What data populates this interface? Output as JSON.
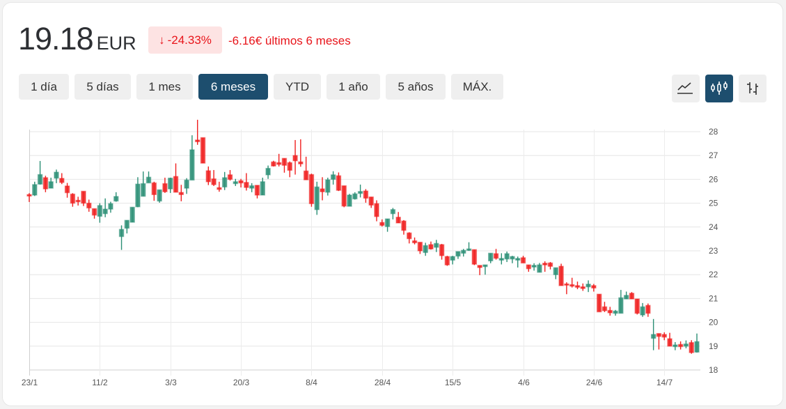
{
  "header": {
    "price": "19.18",
    "currency": "EUR",
    "change_arrow": "↓",
    "change_percent": "-24.33%",
    "change_text": "-6.16€ últimos 6 meses"
  },
  "ranges": [
    {
      "label": "1 día",
      "active": false
    },
    {
      "label": "5 días",
      "active": false
    },
    {
      "label": "1 mes",
      "active": false
    },
    {
      "label": "6 meses",
      "active": true
    },
    {
      "label": "YTD",
      "active": false
    },
    {
      "label": "1 año",
      "active": false
    },
    {
      "label": "5 años",
      "active": false
    },
    {
      "label": "MÁX.",
      "active": false
    }
  ],
  "chart_types": [
    {
      "icon": "line-chart-icon",
      "active": false
    },
    {
      "icon": "candlestick-icon",
      "active": true
    },
    {
      "icon": "ohlc-bars-icon",
      "active": false
    }
  ],
  "colors": {
    "up": "#2b8f75",
    "down": "#f01f1f",
    "accent": "#1d4e6e",
    "negative_text": "#e8141a",
    "negative_bg": "#fde3e3"
  },
  "chart_data": {
    "type": "candlestick",
    "ylim": [
      18,
      28
    ],
    "y_ticks": [
      18,
      19,
      20,
      21,
      22,
      23,
      24,
      25,
      26,
      27,
      28
    ],
    "y_axis_position": "right",
    "grid": true,
    "x_ticks": [
      {
        "label": "23/1",
        "index": 0
      },
      {
        "label": "11/2",
        "index": 13
      },
      {
        "label": "3/3",
        "index": 26
      },
      {
        "label": "20/3",
        "index": 39
      },
      {
        "label": "8/4",
        "index": 52
      },
      {
        "label": "28/4",
        "index": 65
      },
      {
        "label": "15/5",
        "index": 78
      },
      {
        "label": "4/6",
        "index": 91
      },
      {
        "label": "24/6",
        "index": 104
      },
      {
        "label": "14/7",
        "index": 117
      }
    ],
    "ohlc": [
      [
        25.36,
        25.42,
        25.05,
        25.3
      ],
      [
        25.34,
        25.9,
        25.3,
        25.78
      ],
      [
        25.8,
        26.77,
        25.78,
        26.2
      ],
      [
        26.07,
        26.15,
        25.46,
        25.6
      ],
      [
        25.63,
        26.07,
        25.63,
        25.9
      ],
      [
        26.05,
        26.41,
        25.84,
        26.3
      ],
      [
        26.04,
        26.26,
        25.8,
        25.87
      ],
      [
        25.72,
        25.85,
        25.23,
        25.44
      ],
      [
        25.38,
        25.42,
        24.85,
        25.0
      ],
      [
        25.12,
        25.27,
        24.9,
        25.06
      ],
      [
        25.5,
        25.5,
        24.88,
        25.0
      ],
      [
        25.0,
        25.15,
        24.64,
        24.8
      ],
      [
        24.77,
        24.77,
        24.35,
        24.5
      ],
      [
        24.45,
        25.0,
        24.18,
        24.9
      ],
      [
        24.56,
        25.2,
        24.41,
        24.75
      ],
      [
        24.75,
        25.06,
        24.6,
        24.98
      ],
      [
        25.09,
        25.46,
        25.06,
        25.28
      ],
      [
        23.6,
        24.07,
        23.04,
        23.9
      ],
      [
        23.95,
        24.28,
        23.73,
        24.28
      ],
      [
        24.2,
        24.83,
        24.2,
        24.83
      ],
      [
        24.85,
        26.09,
        24.83,
        25.8
      ],
      [
        25.29,
        26.33,
        25.29,
        25.82
      ],
      [
        25.85,
        26.33,
        25.85,
        26.09
      ],
      [
        25.85,
        25.9,
        25.1,
        25.36
      ],
      [
        25.09,
        25.56,
        25.02,
        25.56
      ],
      [
        25.82,
        26.07,
        25.43,
        25.48
      ],
      [
        25.6,
        26.07,
        25.43,
        26.05
      ],
      [
        26.12,
        26.67,
        25.46,
        25.46
      ],
      [
        25.45,
        25.77,
        25.08,
        25.36
      ],
      [
        25.63,
        26.05,
        25.39,
        25.97
      ],
      [
        25.97,
        27.85,
        25.97,
        27.24
      ],
      [
        27.65,
        28.5,
        27.45,
        27.58
      ],
      [
        27.75,
        27.75,
        26.68,
        26.68
      ],
      [
        26.36,
        26.54,
        25.76,
        25.9
      ],
      [
        26.02,
        26.39,
        25.72,
        25.78
      ],
      [
        25.65,
        25.9,
        25.48,
        25.58
      ],
      [
        25.68,
        26.31,
        25.55,
        26.07
      ],
      [
        26.19,
        26.39,
        25.95,
        26.0
      ],
      [
        25.82,
        26.02,
        25.72,
        25.9
      ],
      [
        25.94,
        26.02,
        25.66,
        25.85
      ],
      [
        25.87,
        26.26,
        25.53,
        25.66
      ],
      [
        25.63,
        25.84,
        25.46,
        25.73
      ],
      [
        25.75,
        25.75,
        25.2,
        25.34
      ],
      [
        25.34,
        26.07,
        25.34,
        25.9
      ],
      [
        26.19,
        26.58,
        26.02,
        26.46
      ],
      [
        26.73,
        26.78,
        26.54,
        26.56
      ],
      [
        26.7,
        27.07,
        26.54,
        26.63
      ],
      [
        26.88,
        26.88,
        26.28,
        26.59
      ],
      [
        26.7,
        26.75,
        26.09,
        26.38
      ],
      [
        27.0,
        27.65,
        26.2,
        26.78
      ],
      [
        26.73,
        27.68,
        26.53,
        26.65
      ],
      [
        26.35,
        26.95,
        25.98,
        25.98
      ],
      [
        26.2,
        26.24,
        24.85,
        24.98
      ],
      [
        24.73,
        25.9,
        24.51,
        25.68
      ],
      [
        25.6,
        26.09,
        25.12,
        25.48
      ],
      [
        25.46,
        26.07,
        25.32,
        25.98
      ],
      [
        26.0,
        26.34,
        25.78,
        26.19
      ],
      [
        26.15,
        26.29,
        25.51,
        25.54
      ],
      [
        25.73,
        25.73,
        24.83,
        24.88
      ],
      [
        24.87,
        25.39,
        24.87,
        25.34
      ],
      [
        25.18,
        25.46,
        25.15,
        25.39
      ],
      [
        25.41,
        25.78,
        25.24,
        25.49
      ],
      [
        25.51,
        25.59,
        25.02,
        25.21
      ],
      [
        25.26,
        25.26,
        24.8,
        24.92
      ],
      [
        24.98,
        25.12,
        24.24,
        24.44
      ],
      [
        24.19,
        24.32,
        24.02,
        24.07
      ],
      [
        24.02,
        24.34,
        23.8,
        24.34
      ],
      [
        24.56,
        24.8,
        24.32,
        24.73
      ],
      [
        24.41,
        24.63,
        24.17,
        24.17
      ],
      [
        24.25,
        24.29,
        23.68,
        23.86
      ],
      [
        23.75,
        23.78,
        23.31,
        23.51
      ],
      [
        23.42,
        23.56,
        23.27,
        23.34
      ],
      [
        23.36,
        23.36,
        22.87,
        23.0
      ],
      [
        22.93,
        23.34,
        22.79,
        23.22
      ],
      [
        23.26,
        23.39,
        23.05,
        23.08
      ],
      [
        23.15,
        23.46,
        22.95,
        23.31
      ],
      [
        23.26,
        23.29,
        22.63,
        22.8
      ],
      [
        22.76,
        22.79,
        22.37,
        22.41
      ],
      [
        22.61,
        22.79,
        22.43,
        22.76
      ],
      [
        22.78,
        22.97,
        22.66,
        22.97
      ],
      [
        22.9,
        23.08,
        22.76,
        23.02
      ],
      [
        23.02,
        23.36,
        23.0,
        23.08
      ],
      [
        23.05,
        23.05,
        22.4,
        22.44
      ],
      [
        22.39,
        22.39,
        21.98,
        22.3
      ],
      [
        22.34,
        22.41,
        22.0,
        22.41
      ],
      [
        22.58,
        22.9,
        22.48,
        22.9
      ],
      [
        22.88,
        23.08,
        22.63,
        22.69
      ],
      [
        22.61,
        22.9,
        22.43,
        22.68
      ],
      [
        22.66,
        22.97,
        22.53,
        22.88
      ],
      [
        22.66,
        22.79,
        22.48,
        22.76
      ],
      [
        22.61,
        22.76,
        22.3,
        22.68
      ],
      [
        22.71,
        22.79,
        22.49,
        22.49
      ],
      [
        22.41,
        22.41,
        22.12,
        22.25
      ],
      [
        22.32,
        22.48,
        22.17,
        22.39
      ],
      [
        22.1,
        22.49,
        22.1,
        22.41
      ],
      [
        22.48,
        22.56,
        22.12,
        22.41
      ],
      [
        22.49,
        22.53,
        22.22,
        22.35
      ],
      [
        22.0,
        22.29,
        21.81,
        22.29
      ],
      [
        22.35,
        22.46,
        21.54,
        21.54
      ],
      [
        21.61,
        21.68,
        21.18,
        21.56
      ],
      [
        21.58,
        21.87,
        21.46,
        21.52
      ],
      [
        21.54,
        21.71,
        21.39,
        21.47
      ],
      [
        21.49,
        21.63,
        21.32,
        21.42
      ],
      [
        21.49,
        21.76,
        21.27,
        21.6
      ],
      [
        21.54,
        21.61,
        21.29,
        21.44
      ],
      [
        21.18,
        21.18,
        20.44,
        20.44
      ],
      [
        20.65,
        20.86,
        20.43,
        20.49
      ],
      [
        20.5,
        20.65,
        20.28,
        20.4
      ],
      [
        20.38,
        20.52,
        20.28,
        20.47
      ],
      [
        20.38,
        21.36,
        20.38,
        21.03
      ],
      [
        20.98,
        21.29,
        20.98,
        21.13
      ],
      [
        21.22,
        21.27,
        20.98,
        20.98
      ],
      [
        20.98,
        20.98,
        20.33,
        20.38
      ],
      [
        20.31,
        20.81,
        20.23,
        20.65
      ],
      [
        20.71,
        20.79,
        20.23,
        20.38
      ],
      [
        19.33,
        20.14,
        18.83,
        19.49
      ],
      [
        19.53,
        19.53,
        18.86,
        19.41
      ],
      [
        19.49,
        19.58,
        19.25,
        19.38
      ],
      [
        19.31,
        19.56,
        19.0,
        19.0
      ],
      [
        18.98,
        19.17,
        18.83,
        19.05
      ],
      [
        19.07,
        19.2,
        18.86,
        18.98
      ],
      [
        19.0,
        19.24,
        18.91,
        19.09
      ],
      [
        19.15,
        19.25,
        18.68,
        18.73
      ],
      [
        18.75,
        19.53,
        18.73,
        19.19
      ]
    ]
  }
}
